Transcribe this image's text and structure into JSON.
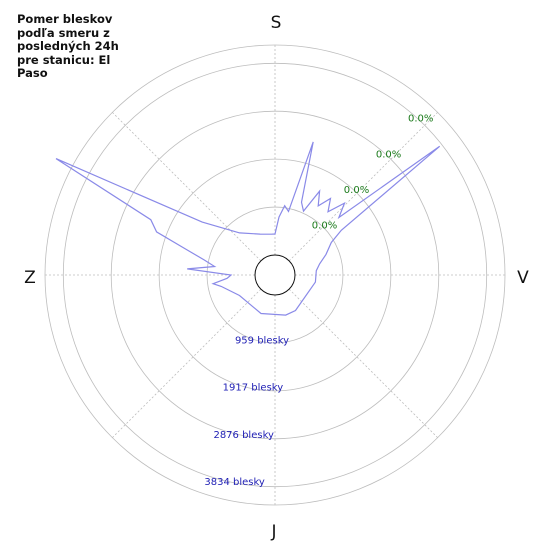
{
  "chart_data": {
    "type": "polar-line",
    "title": "Pomer bleskov podľa smeru z posledných 24h pre stanicu: El Paso",
    "directions": {
      "north": "S",
      "east": "V",
      "south": "J",
      "west": "Z"
    },
    "radial_max": 4200,
    "radial_ticks": [
      {
        "value": 959,
        "label": "959 blesky"
      },
      {
        "value": 1917,
        "label": "1917 blesky"
      },
      {
        "value": 2876,
        "label": "2876 blesky"
      },
      {
        "value": 3834,
        "label": "3834 blesky"
      }
    ],
    "ratio_ticks": [
      "0.0%",
      "0.0%",
      "0.0%",
      "0.0%"
    ],
    "series": [
      {
        "color": "#8a8ae8",
        "points": [
          {
            "angle": 0,
            "value": 420
          },
          {
            "angle": 4,
            "value": 760
          },
          {
            "angle": 8,
            "value": 1000
          },
          {
            "angle": 12,
            "value": 900
          },
          {
            "angle": 16,
            "value": 2370
          },
          {
            "angle": 20,
            "value": 1150
          },
          {
            "angle": 24,
            "value": 1000
          },
          {
            "angle": 28,
            "value": 1500
          },
          {
            "angle": 32,
            "value": 1230
          },
          {
            "angle": 36,
            "value": 1490
          },
          {
            "angle": 40,
            "value": 1250
          },
          {
            "angle": 44,
            "value": 1600
          },
          {
            "angle": 48,
            "value": 1320
          },
          {
            "angle": 52,
            "value": 3780
          },
          {
            "angle": 56,
            "value": 1200
          },
          {
            "angle": 60,
            "value": 900
          },
          {
            "angle": 68,
            "value": 700
          },
          {
            "angle": 76,
            "value": 520
          },
          {
            "angle": 84,
            "value": 430
          },
          {
            "angle": 100,
            "value": 420
          },
          {
            "angle": 150,
            "value": 420
          },
          {
            "angle": 165,
            "value": 430
          },
          {
            "angle": 200,
            "value": 420
          },
          {
            "angle": 240,
            "value": 420
          },
          {
            "angle": 258,
            "value": 700
          },
          {
            "angle": 262,
            "value": 850
          },
          {
            "angle": 266,
            "value": 560
          },
          {
            "angle": 270,
            "value": 480
          },
          {
            "angle": 274,
            "value": 1360
          },
          {
            "angle": 278,
            "value": 820
          },
          {
            "angle": 282,
            "value": 1050
          },
          {
            "angle": 286,
            "value": 1440
          },
          {
            "angle": 290,
            "value": 2120
          },
          {
            "angle": 294,
            "value": 2320
          },
          {
            "angle": 298,
            "value": 4560
          },
          {
            "angle": 306,
            "value": 1400
          },
          {
            "angle": 320,
            "value": 700
          },
          {
            "angle": 340,
            "value": 470
          },
          {
            "angle": 355,
            "value": 420
          }
        ]
      }
    ]
  }
}
